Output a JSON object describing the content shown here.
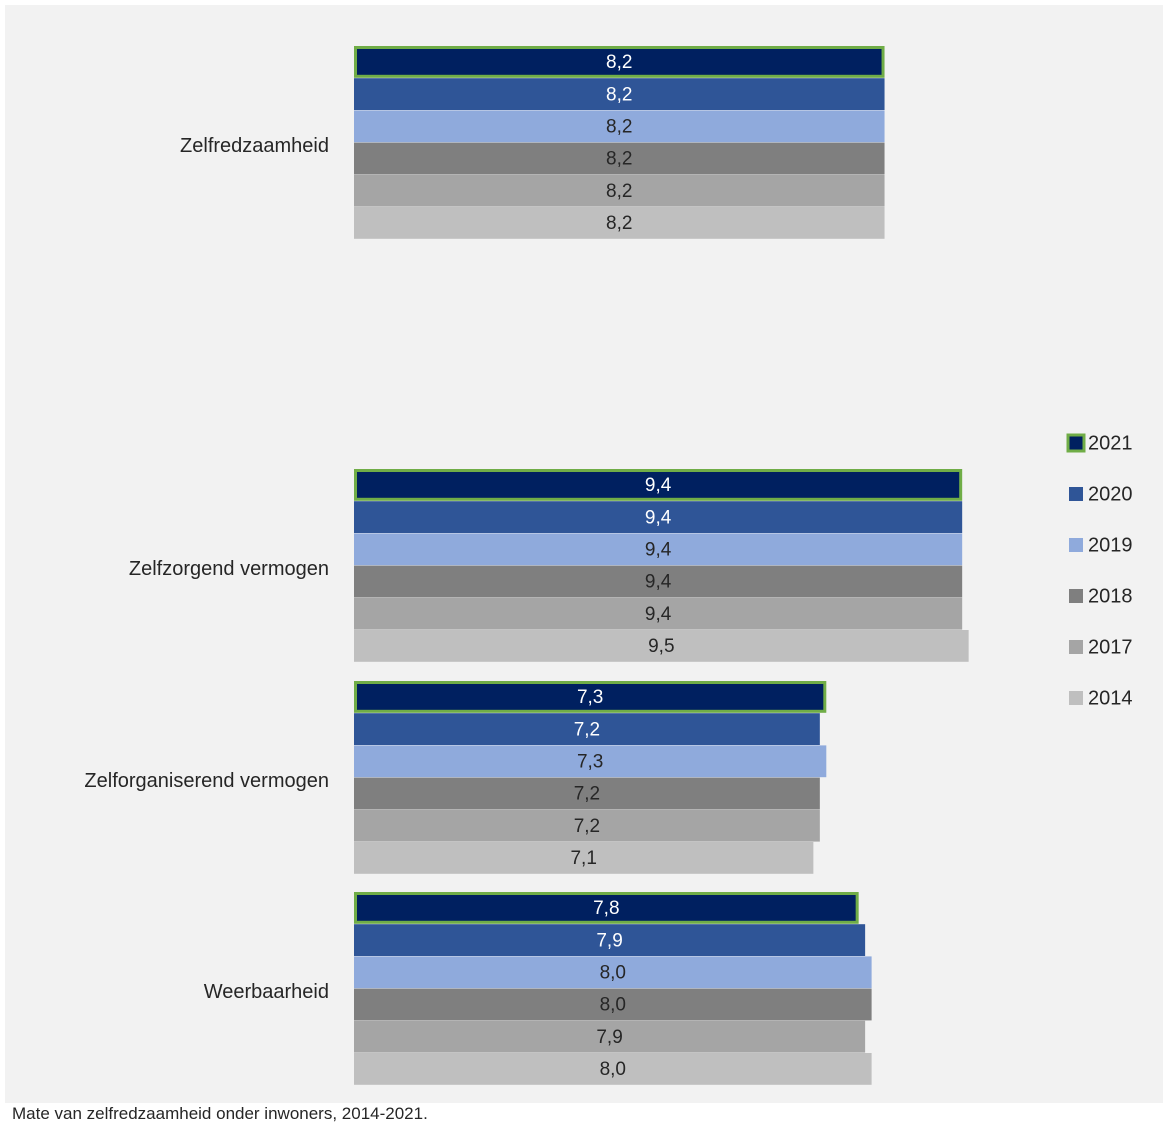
{
  "chart_data": {
    "type": "bar",
    "orientation": "horizontal",
    "categories": [
      "Zelfredzaamheid",
      "Zelfzorgend vermogen",
      "Zelforganiserend vermogen",
      "Weerbaarheid"
    ],
    "series": [
      {
        "name": "2021",
        "values": [
          8.2,
          9.4,
          7.3,
          7.8
        ],
        "labels": [
          "8,2",
          "9,4",
          "7,3",
          "7,8"
        ],
        "color": "#002060",
        "outline": "#70ad47"
      },
      {
        "name": "2020",
        "values": [
          8.2,
          9.4,
          7.2,
          7.9
        ],
        "labels": [
          "8,2",
          "9,4",
          "7,2",
          "7,9"
        ],
        "color": "#2f5597"
      },
      {
        "name": "2019",
        "values": [
          8.2,
          9.4,
          7.3,
          8.0
        ],
        "labels": [
          "8,2",
          "9,4",
          "7,3",
          "8,0"
        ],
        "color": "#8faadc"
      },
      {
        "name": "2018",
        "values": [
          8.2,
          9.4,
          7.2,
          8.0
        ],
        "labels": [
          "8,2",
          "9,4",
          "7,2",
          "8,0"
        ],
        "color": "#7f7f7f"
      },
      {
        "name": "2017",
        "values": [
          8.2,
          9.4,
          7.2,
          7.9
        ],
        "labels": [
          "8,2",
          "9,4",
          "7,2",
          "7,9"
        ],
        "color": "#a5a5a5"
      },
      {
        "name": "2014",
        "values": [
          8.2,
          9.5,
          7.1,
          8.0
        ],
        "labels": [
          "8,2",
          "9,5",
          "7,1",
          "8,0"
        ],
        "color": "#bfbfbf"
      }
    ],
    "label_colors": [
      "#ffffff",
      "#ffffff",
      "#262626",
      "#262626",
      "#262626",
      "#262626"
    ],
    "xlim": [
      0,
      10
    ],
    "legend_position": "right",
    "grid": false
  },
  "caption": "Mate van zelfredzaamheid onder inwoners, 2014-2021."
}
